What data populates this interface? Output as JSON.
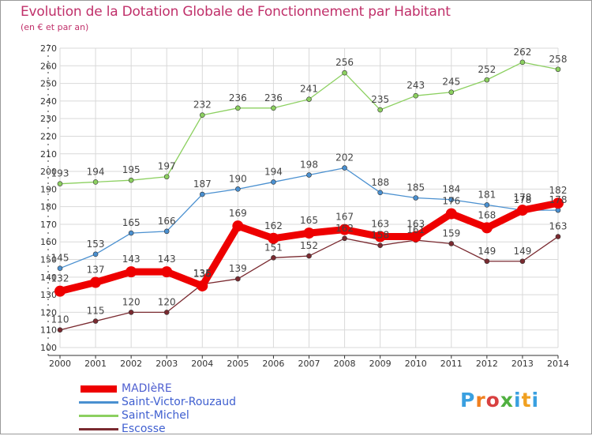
{
  "title": "Evolution de la Dotation Globale de Fonctionnement par Habitant",
  "subtitle": "(en € et par an)",
  "logo_text": "Proxiti",
  "colors": {
    "title": "#c0306a",
    "grid": "#d9d9d9",
    "axis": "#333333",
    "axis_ticks": "#e0304a"
  },
  "chart_data": {
    "type": "line",
    "title": "Evolution de la Dotation Globale de Fonctionnement par Habitant",
    "subtitle": "(en € et par an)",
    "xlabel": "",
    "ylabel": "",
    "x": [
      2000,
      2001,
      2002,
      2003,
      2004,
      2005,
      2006,
      2007,
      2008,
      2009,
      2010,
      2011,
      2012,
      2013,
      2014
    ],
    "ylim": [
      100,
      270
    ],
    "ytick_step": 10,
    "grid": true,
    "legend_position": "bottom-left",
    "series": [
      {
        "name": "MADIèRE",
        "color": "#ee0000",
        "values": [
          132,
          137,
          143,
          143,
          135,
          169,
          162,
          165,
          167,
          163,
          163,
          176,
          168,
          178,
          182
        ],
        "data_labels": [
          "132",
          "137",
          "143",
          "143",
          "135",
          "169",
          "162",
          "165",
          "167",
          "163",
          "163",
          "176",
          "168",
          "178",
          "182"
        ]
      },
      {
        "name": "Saint-Victor-Rouzaud",
        "color": "#4a90d0",
        "values": [
          145,
          153,
          165,
          166,
          187,
          190,
          194,
          198,
          202,
          188,
          185,
          184,
          181,
          178,
          178
        ],
        "data_labels": [
          "145",
          "153",
          "165",
          "166",
          "187",
          "190",
          "194",
          "198",
          "202",
          "188",
          "185",
          "184",
          "181",
          "178",
          "178"
        ]
      },
      {
        "name": "Saint-Michel",
        "color": "#8cd060",
        "values": [
          193,
          194,
          195,
          197,
          232,
          236,
          236,
          241,
          256,
          235,
          243,
          245,
          252,
          262,
          258
        ],
        "data_labels": [
          "193",
          "194",
          "195",
          "197",
          "232",
          "236",
          "236",
          "241",
          "256",
          "235",
          "243",
          "245",
          "252",
          "262",
          "258"
        ]
      },
      {
        "name": "Escosse",
        "color": "#7a2a30",
        "values": [
          110,
          115,
          120,
          120,
          136,
          139,
          151,
          152,
          162,
          158,
          161,
          159,
          149,
          149,
          163
        ],
        "data_labels": [
          "110",
          "115",
          "120",
          "120",
          "136",
          "139",
          "151",
          "152",
          "162",
          "158",
          "161",
          "159",
          "149",
          "149",
          "163"
        ]
      }
    ]
  }
}
